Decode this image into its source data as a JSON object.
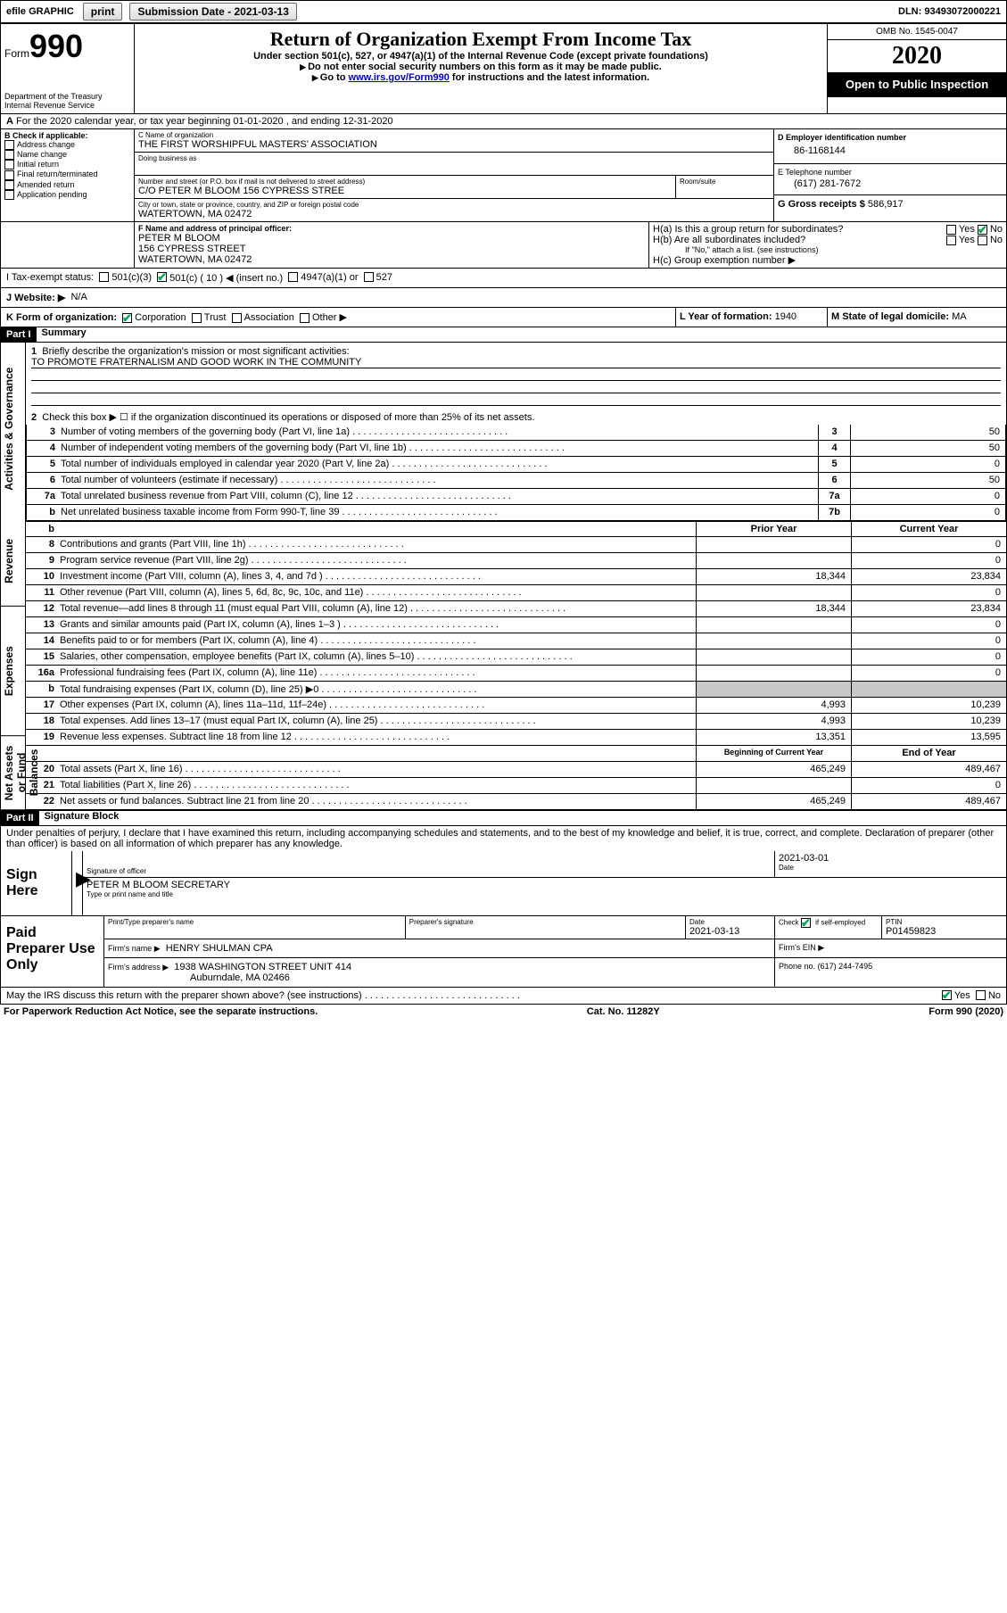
{
  "topbar": {
    "efile": "efile GRAPHIC",
    "print": "print",
    "subdate_label": "Submission Date - 2021-03-13",
    "dln": "DLN: 93493072000221"
  },
  "header": {
    "form_word": "Form",
    "form_no": "990",
    "dept1": "Department of the Treasury",
    "dept2": "Internal Revenue Service",
    "title": "Return of Organization Exempt From Income Tax",
    "subtitle": "Under section 501(c), 527, or 4947(a)(1) of the Internal Revenue Code (except private foundations)",
    "note1": "Do not enter social security numbers on this form as it may be made public.",
    "note2_pre": "Go to ",
    "note2_link": "www.irs.gov/Form990",
    "note2_post": " for instructions and the latest information.",
    "omb": "OMB No. 1545-0047",
    "year": "2020",
    "public": "Open to Public Inspection"
  },
  "a_line": "For the 2020 calendar year, or tax year beginning 01-01-2020   , and ending 12-31-2020",
  "boxB": {
    "label": "B Check if applicable:",
    "items": [
      "Address change",
      "Name change",
      "Initial return",
      "Final return/terminated",
      "Amended return",
      "Application pending"
    ]
  },
  "boxC": {
    "name_label": "C Name of organization",
    "name": "THE FIRST WORSHIPFUL MASTERS' ASSOCIATION",
    "dba_label": "Doing business as",
    "dba": "",
    "street_label": "Number and street (or P.O. box if mail is not delivered to street address)",
    "room_label": "Room/suite",
    "street": "C/O PETER M BLOOM 156 CYPRESS STREE",
    "city_label": "City or town, state or province, country, and ZIP or foreign postal code",
    "city": "WATERTOWN, MA  02472"
  },
  "boxD": {
    "label": "D Employer identification number",
    "value": "86-1168144"
  },
  "boxE": {
    "label": "E Telephone number",
    "value": "(617) 281-7672"
  },
  "boxG": {
    "label": "G Gross receipts $",
    "value": "586,917"
  },
  "boxF": {
    "label": "F  Name and address of principal officer:",
    "l1": "PETER M BLOOM",
    "l2": "156 CYPRESS STREET",
    "l3": "WATERTOWN, MA  02472"
  },
  "boxH": {
    "a_label": "H(a)  Is this a group return for subordinates?",
    "b_label": "H(b)  Are all subordinates included?",
    "b_note": "If \"No,\" attach a list. (see instructions)",
    "c_label": "H(c)  Group exemption number ▶",
    "yes": "Yes",
    "no": "No"
  },
  "boxI": {
    "label": "I    Tax-exempt status:",
    "o1": "501(c)(3)",
    "o2": "501(c) ( 10 ) ◀ (insert no.)",
    "o3": "4947(a)(1) or",
    "o4": "527"
  },
  "boxJ": {
    "label": "J    Website: ▶",
    "value": "N/A"
  },
  "boxK": {
    "label": "K Form of organization:",
    "o1": "Corporation",
    "o2": "Trust",
    "o3": "Association",
    "o4": "Other ▶"
  },
  "boxL": {
    "label": "L Year of formation:",
    "value": "1940"
  },
  "boxM": {
    "label": "M State of legal domicile:",
    "value": "MA"
  },
  "part1": {
    "hdr": "Part I",
    "title": "Summary",
    "side1": "Activities & Governance",
    "side2": "Revenue",
    "side3": "Expenses",
    "side4": "Net Assets or Fund Balances",
    "l1_label": "Briefly describe the organization's mission or most significant activities:",
    "l1_value": "TO PROMOTE FRATERNALISM AND GOOD WORK IN THE COMMUNITY",
    "l2": "Check this box ▶ ☐  if the organization discontinued its operations or disposed of more than 25% of its net assets.",
    "rows_a": [
      {
        "n": "3",
        "t": "Number of voting members of the governing body (Part VI, line 1a)",
        "k": "3",
        "v": "50"
      },
      {
        "n": "4",
        "t": "Number of independent voting members of the governing body (Part VI, line 1b)",
        "k": "4",
        "v": "50"
      },
      {
        "n": "5",
        "t": "Total number of individuals employed in calendar year 2020 (Part V, line 2a)",
        "k": "5",
        "v": "0"
      },
      {
        "n": "6",
        "t": "Total number of volunteers (estimate if necessary)",
        "k": "6",
        "v": "50"
      },
      {
        "n": "7a",
        "t": "Total unrelated business revenue from Part VIII, column (C), line 12",
        "k": "7a",
        "v": "0"
      },
      {
        "n": "b",
        "t": "Net unrelated business taxable income from Form 990-T, line 39",
        "k": "7b",
        "v": "0"
      }
    ],
    "hdr_prior": "Prior Year",
    "hdr_curr": "Current Year",
    "rows_rev": [
      {
        "n": "8",
        "t": "Contributions and grants (Part VIII, line 1h)",
        "p": "",
        "c": "0"
      },
      {
        "n": "9",
        "t": "Program service revenue (Part VIII, line 2g)",
        "p": "",
        "c": "0"
      },
      {
        "n": "10",
        "t": "Investment income (Part VIII, column (A), lines 3, 4, and 7d )",
        "p": "18,344",
        "c": "23,834"
      },
      {
        "n": "11",
        "t": "Other revenue (Part VIII, column (A), lines 5, 6d, 8c, 9c, 10c, and 11e)",
        "p": "",
        "c": "0"
      },
      {
        "n": "12",
        "t": "Total revenue—add lines 8 through 11 (must equal Part VIII, column (A), line 12)",
        "p": "18,344",
        "c": "23,834"
      }
    ],
    "rows_exp": [
      {
        "n": "13",
        "t": "Grants and similar amounts paid (Part IX, column (A), lines 1–3 )",
        "p": "",
        "c": "0"
      },
      {
        "n": "14",
        "t": "Benefits paid to or for members (Part IX, column (A), line 4)",
        "p": "",
        "c": "0"
      },
      {
        "n": "15",
        "t": "Salaries, other compensation, employee benefits (Part IX, column (A), lines 5–10)",
        "p": "",
        "c": "0"
      },
      {
        "n": "16a",
        "t": "Professional fundraising fees (Part IX, column (A), line 11e)",
        "p": "",
        "c": "0"
      },
      {
        "n": "b",
        "t": "Total fundraising expenses (Part IX, column (D), line 25) ▶0",
        "p": "SHADE",
        "c": "SHADE"
      },
      {
        "n": "17",
        "t": "Other expenses (Part IX, column (A), lines 11a–11d, 11f–24e)",
        "p": "4,993",
        "c": "10,239"
      },
      {
        "n": "18",
        "t": "Total expenses. Add lines 13–17 (must equal Part IX, column (A), line 25)",
        "p": "4,993",
        "c": "10,239"
      },
      {
        "n": "19",
        "t": "Revenue less expenses. Subtract line 18 from line 12",
        "p": "13,351",
        "c": "13,595"
      }
    ],
    "hdr_beg": "Beginning of Current Year",
    "hdr_end": "End of Year",
    "rows_net": [
      {
        "n": "20",
        "t": "Total assets (Part X, line 16)",
        "p": "465,249",
        "c": "489,467"
      },
      {
        "n": "21",
        "t": "Total liabilities (Part X, line 26)",
        "p": "",
        "c": "0"
      },
      {
        "n": "22",
        "t": "Net assets or fund balances. Subtract line 21 from line 20",
        "p": "465,249",
        "c": "489,467"
      }
    ]
  },
  "part2": {
    "hdr": "Part II",
    "title": "Signature Block",
    "decl": "Under penalties of perjury, I declare that I have examined this return, including accompanying schedules and statements, and to the best of my knowledge and belief, it is true, correct, and complete. Declaration of preparer (other than officer) is based on all information of which preparer has any knowledge.",
    "sign_here": "Sign Here",
    "sig_officer": "Signature of officer",
    "sig_date_label": "Date",
    "sig_date": "2021-03-01",
    "name_title": "PETER M BLOOM  SECRETARY",
    "name_title_label": "Type or print name and title",
    "paid": "Paid Preparer Use Only",
    "pp_name_label": "Print/Type preparer's name",
    "pp_sig_label": "Preparer's signature",
    "pp_date_label": "Date",
    "pp_date": "2021-03-13",
    "pp_check_label": "Check ☑ if self-employed",
    "pp_ptin_label": "PTIN",
    "pp_ptin": "P01459823",
    "firm_name_label": "Firm's name   ▶",
    "firm_name": "HENRY SHULMAN CPA",
    "firm_ein_label": "Firm's EIN ▶",
    "firm_addr_label": "Firm's address ▶",
    "firm_addr1": "1938 WASHINGTON STREET UNIT 414",
    "firm_addr2": "Auburndale, MA  02466",
    "firm_phone_label": "Phone no.",
    "firm_phone": "(617) 244-7495",
    "irs_q": "May the IRS discuss this return with the preparer shown above? (see instructions)"
  },
  "footer": {
    "left": "For Paperwork Reduction Act Notice, see the separate instructions.",
    "mid": "Cat. No. 11282Y",
    "right": "Form 990 (2020)"
  }
}
